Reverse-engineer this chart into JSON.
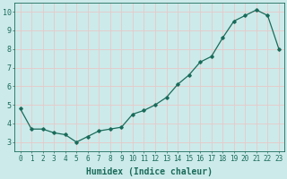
{
  "x": [
    0,
    1,
    2,
    3,
    4,
    5,
    6,
    7,
    8,
    9,
    10,
    11,
    12,
    13,
    14,
    15,
    16,
    17,
    18,
    19,
    20,
    21,
    22,
    23
  ],
  "y": [
    4.8,
    3.7,
    3.7,
    3.5,
    3.4,
    3.0,
    3.3,
    3.6,
    3.7,
    3.8,
    4.5,
    4.7,
    5.0,
    5.4,
    6.1,
    6.6,
    7.3,
    7.6,
    8.6,
    9.5,
    9.8,
    10.1,
    9.8,
    8.0
  ],
  "xlabel": "Humidex (Indice chaleur)",
  "xlim": [
    -0.5,
    23.5
  ],
  "ylim": [
    2.5,
    10.5
  ],
  "yticks": [
    3,
    4,
    5,
    6,
    7,
    8,
    9,
    10
  ],
  "xticks": [
    0,
    1,
    2,
    3,
    4,
    5,
    6,
    7,
    8,
    9,
    10,
    11,
    12,
    13,
    14,
    15,
    16,
    17,
    18,
    19,
    20,
    21,
    22,
    23
  ],
  "line_color": "#1a6b5a",
  "marker": "D",
  "marker_size": 1.8,
  "bg_color": "#cceaea",
  "grid_color": "#e8c8c8",
  "axis_color": "#1a6b5a",
  "label_color": "#1a6b5a",
  "tick_fontsize": 5.5,
  "xlabel_fontsize": 7
}
